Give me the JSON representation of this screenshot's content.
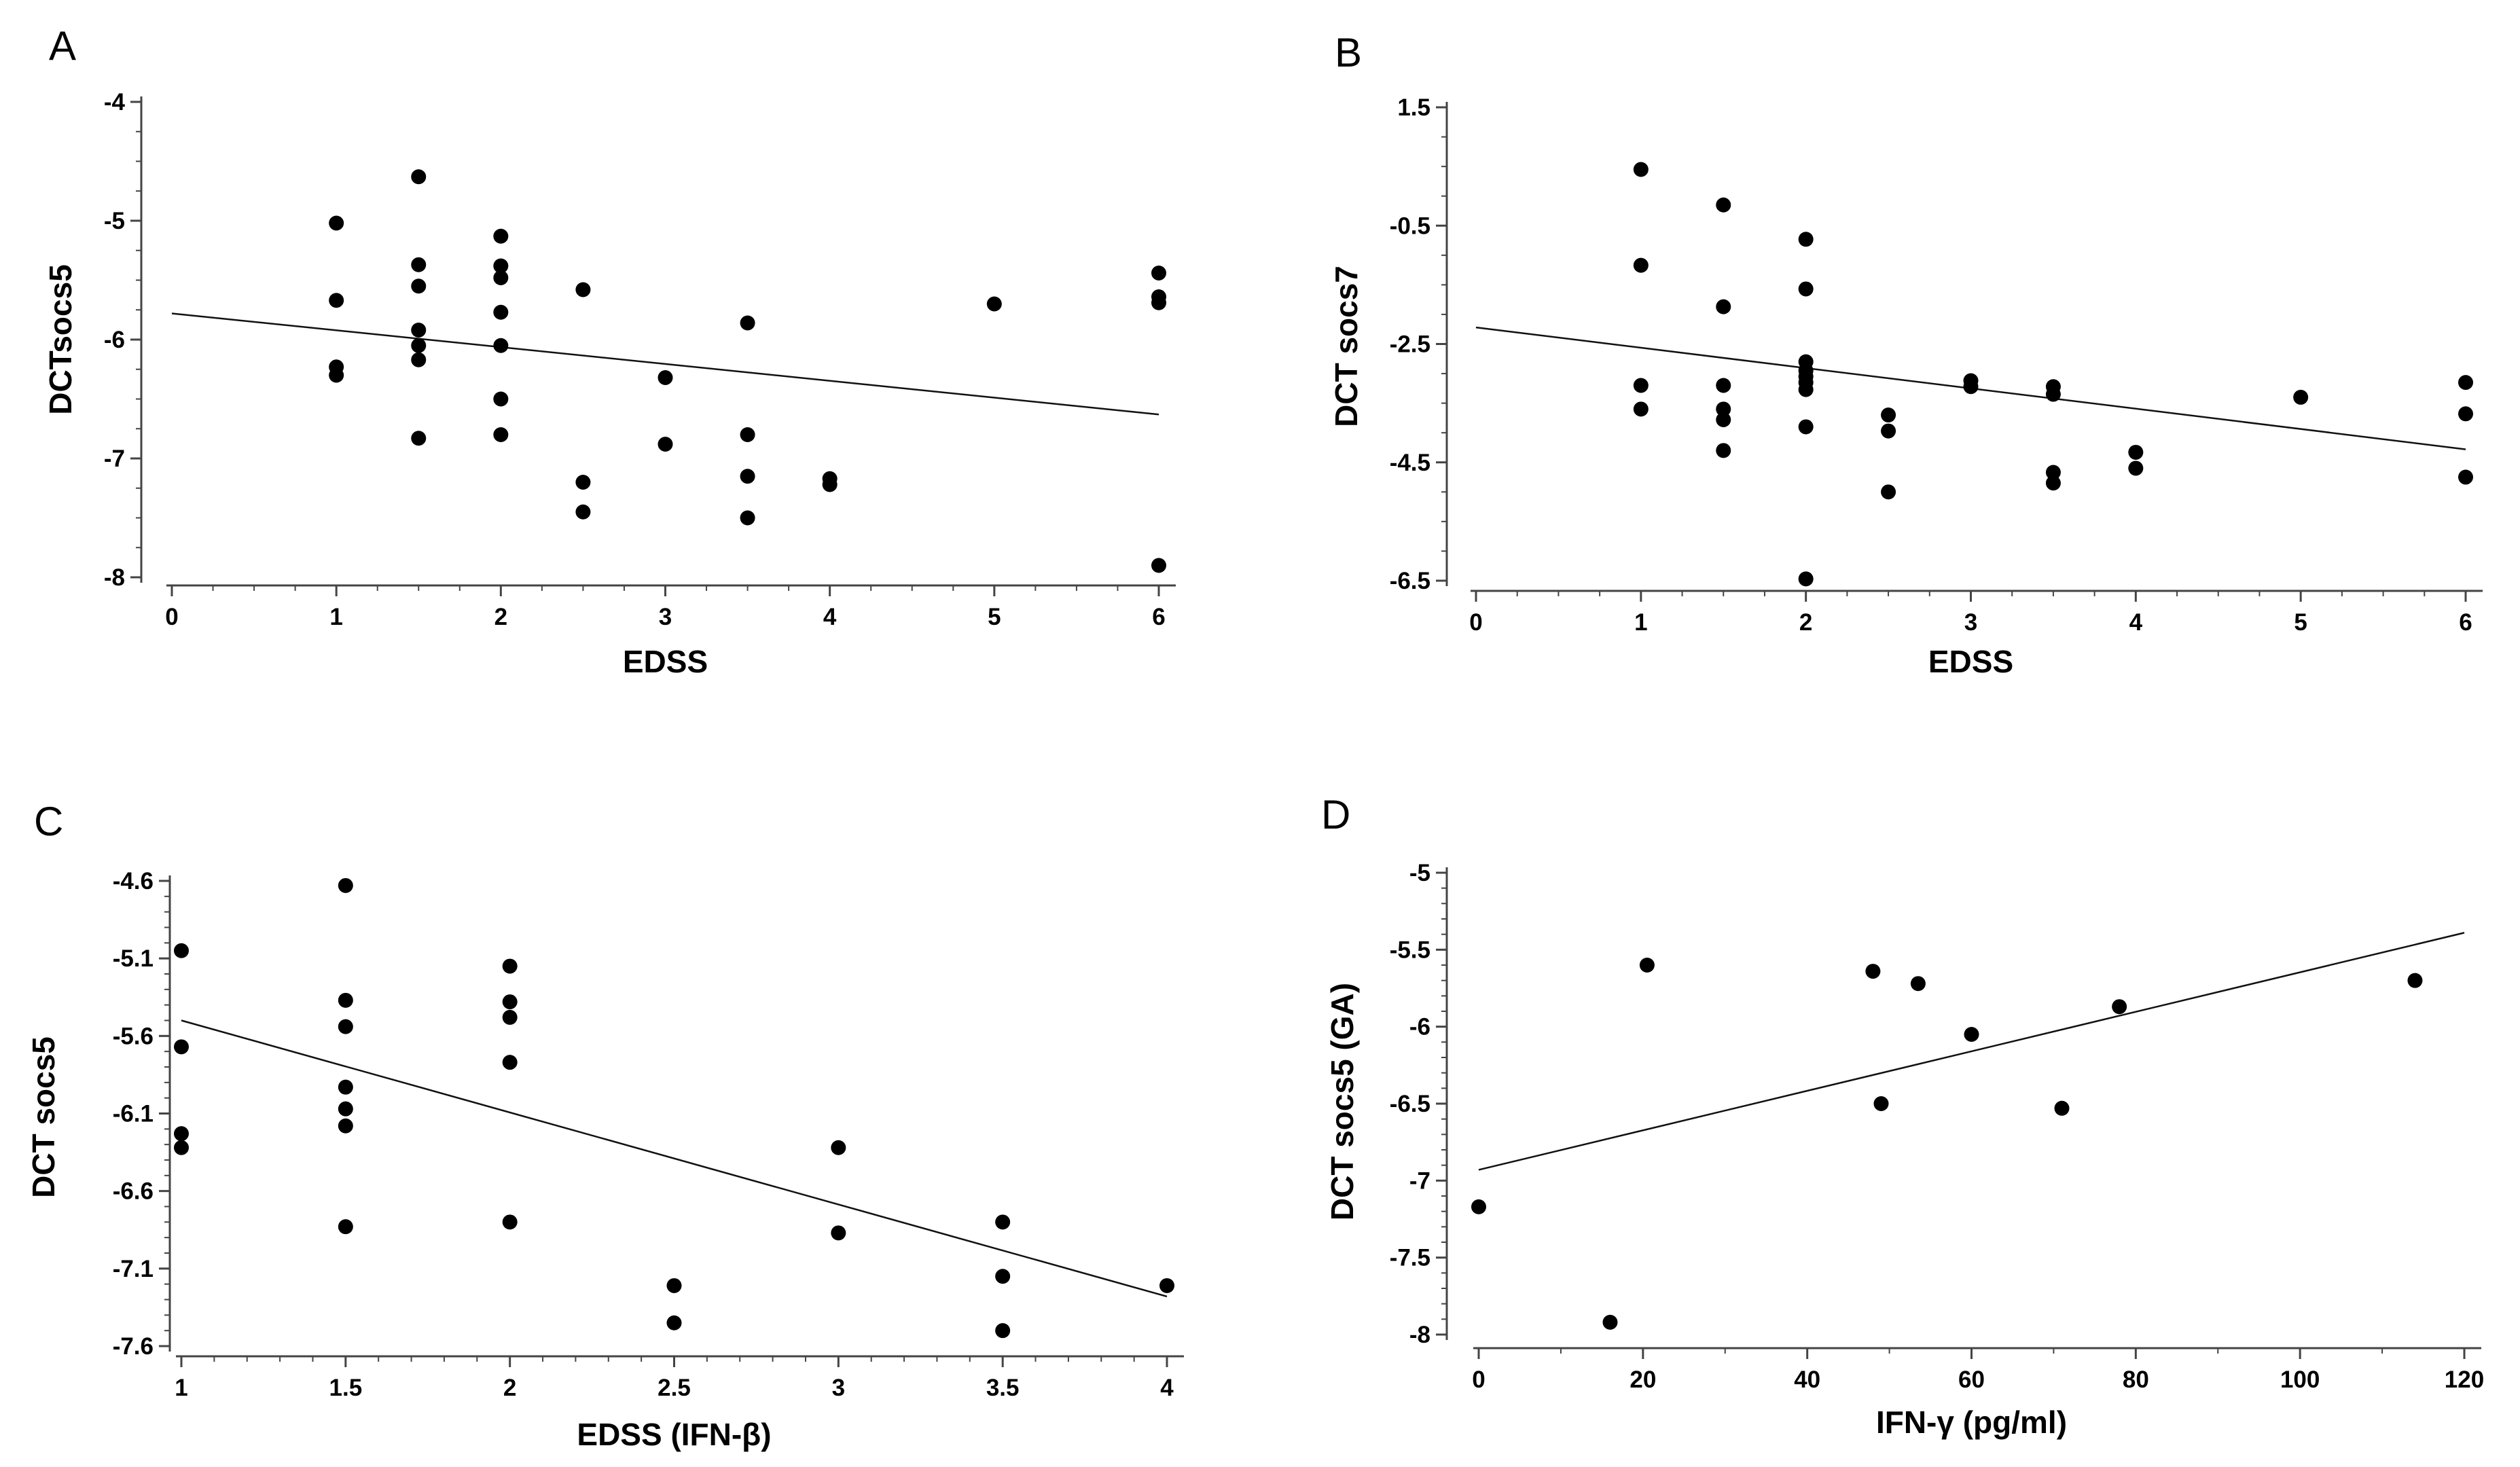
{
  "chart_data": [
    {
      "panel": "A",
      "type": "scatter",
      "xlabel": "EDSS",
      "ylabel": "DCTsocs5",
      "xlim": [
        0,
        6
      ],
      "ylim": [
        -8,
        -4
      ],
      "xticks": [
        0,
        1,
        2,
        3,
        4,
        5,
        6
      ],
      "yticks": [
        -8,
        -7,
        -6,
        -5,
        -4
      ],
      "x_minor_step": 0.25,
      "y_minor_step": 0.25,
      "points": [
        [
          1,
          -5.02
        ],
        [
          1,
          -5.67
        ],
        [
          1,
          -6.23
        ],
        [
          1,
          -6.3
        ],
        [
          1.5,
          -4.63
        ],
        [
          1.5,
          -5.37
        ],
        [
          1.5,
          -5.55
        ],
        [
          1.5,
          -5.92
        ],
        [
          1.5,
          -6.05
        ],
        [
          1.5,
          -6.17
        ],
        [
          1.5,
          -6.83
        ],
        [
          2,
          -5.13
        ],
        [
          2,
          -5.38
        ],
        [
          2,
          -5.48
        ],
        [
          2,
          -5.77
        ],
        [
          2,
          -6.05
        ],
        [
          2,
          -6.5
        ],
        [
          2,
          -6.8
        ],
        [
          2.5,
          -5.58
        ],
        [
          2.5,
          -7.2
        ],
        [
          2.5,
          -7.45
        ],
        [
          3,
          -6.32
        ],
        [
          3,
          -6.88
        ],
        [
          3.5,
          -5.86
        ],
        [
          3.5,
          -6.8
        ],
        [
          3.5,
          -7.15
        ],
        [
          3.5,
          -7.5
        ],
        [
          4,
          -7.17
        ],
        [
          4,
          -7.22
        ],
        [
          5,
          -5.7
        ],
        [
          6,
          -5.44
        ],
        [
          6,
          -5.64
        ],
        [
          6,
          -5.69
        ],
        [
          6,
          -7.9
        ]
      ],
      "fit_line": [
        [
          0,
          -5.78
        ],
        [
          6,
          -6.63
        ]
      ]
    },
    {
      "panel": "B",
      "type": "scatter",
      "xlabel": "EDSS",
      "ylabel": "DCT socs7",
      "xlim": [
        0,
        6
      ],
      "ylim": [
        -6.5,
        1.5
      ],
      "xticks": [
        0,
        1,
        2,
        3,
        4,
        5,
        6
      ],
      "yticks": [
        -6.5,
        -4.5,
        -2.5,
        -0.5,
        1.5
      ],
      "y_tick_labels": [
        "-6.5",
        "-4.5",
        "-2.5",
        "-0.5",
        "1.5"
      ],
      "x_minor_step": 0.25,
      "y_minor_step": 0.5,
      "points": [
        [
          1,
          0.45
        ],
        [
          1,
          -1.17
        ],
        [
          1,
          -3.2
        ],
        [
          1,
          -3.6
        ],
        [
          1.5,
          -0.15
        ],
        [
          1.5,
          -1.87
        ],
        [
          1.5,
          -3.2
        ],
        [
          1.5,
          -3.6
        ],
        [
          1.5,
          -3.78
        ],
        [
          1.5,
          -4.3
        ],
        [
          2,
          -0.73
        ],
        [
          2,
          -1.57
        ],
        [
          2,
          -2.8
        ],
        [
          2,
          -2.95
        ],
        [
          2,
          -3.05
        ],
        [
          2,
          -3.15
        ],
        [
          2,
          -3.27
        ],
        [
          2,
          -3.9
        ],
        [
          2,
          -6.47
        ],
        [
          2.5,
          -3.7
        ],
        [
          2.5,
          -3.97
        ],
        [
          2.5,
          -5.0
        ],
        [
          3,
          -3.12
        ],
        [
          3,
          -3.22
        ],
        [
          3.5,
          -3.22
        ],
        [
          3.5,
          -3.35
        ],
        [
          3.5,
          -4.67
        ],
        [
          3.5,
          -4.85
        ],
        [
          4,
          -4.33
        ],
        [
          4,
          -4.6
        ],
        [
          5,
          -3.4
        ],
        [
          6,
          -3.15
        ],
        [
          6,
          -3.68
        ],
        [
          6,
          -4.75
        ]
      ],
      "fit_line": [
        [
          0,
          -2.22
        ],
        [
          6,
          -4.28
        ]
      ]
    },
    {
      "panel": "C",
      "type": "scatter",
      "xlabel": "EDSS (IFN-β)",
      "ylabel": "DCT socs5",
      "xlim": [
        1,
        4
      ],
      "ylim": [
        -7.6,
        -4.6
      ],
      "xticks": [
        1,
        1.5,
        2,
        2.5,
        3,
        3.5,
        4
      ],
      "yticks": [
        -7.6,
        -7.1,
        -6.6,
        -6.1,
        -5.6,
        -5.1,
        -4.6
      ],
      "y_tick_labels": [
        "-7.6",
        "-7.1",
        "-6.6",
        "-6.1",
        "-5.6",
        "-5.1",
        "-4.6"
      ],
      "x_minor_step": 0.1,
      "y_minor_step": 0.1,
      "points": [
        [
          1,
          -5.05
        ],
        [
          1,
          -5.67
        ],
        [
          1,
          -6.23
        ],
        [
          1,
          -6.32
        ],
        [
          1.5,
          -4.63
        ],
        [
          1.5,
          -5.37
        ],
        [
          1.5,
          -5.54
        ],
        [
          1.5,
          -5.93
        ],
        [
          1.5,
          -6.07
        ],
        [
          1.5,
          -6.18
        ],
        [
          1.5,
          -6.83
        ],
        [
          2,
          -5.15
        ],
        [
          2,
          -5.38
        ],
        [
          2,
          -5.48
        ],
        [
          2,
          -5.77
        ],
        [
          2,
          -6.8
        ],
        [
          2.5,
          -7.21
        ],
        [
          2.5,
          -7.45
        ],
        [
          3,
          -6.32
        ],
        [
          3,
          -6.87
        ],
        [
          3.5,
          -6.8
        ],
        [
          3.5,
          -7.15
        ],
        [
          3.5,
          -7.5
        ],
        [
          4,
          -7.21
        ]
      ],
      "fit_line": [
        [
          1,
          -5.5
        ],
        [
          4,
          -7.28
        ]
      ]
    },
    {
      "panel": "D",
      "type": "scatter",
      "xlabel": "IFN-γ (pg/ml)",
      "ylabel": "DCT socs5 (GA)",
      "xlim": [
        0,
        120
      ],
      "ylim": [
        -8,
        -5
      ],
      "xticks": [
        0,
        20,
        40,
        60,
        80,
        100,
        120
      ],
      "yticks": [
        -8,
        -7.5,
        -7,
        -6.5,
        -6,
        -5.5,
        -5
      ],
      "x_minor_step": 10,
      "y_minor_step": 0.1,
      "points": [
        [
          0,
          -7.17
        ],
        [
          16,
          -7.92
        ],
        [
          20.5,
          -5.6
        ],
        [
          48,
          -5.64
        ],
        [
          49,
          -6.5
        ],
        [
          53.5,
          -5.72
        ],
        [
          60,
          -6.05
        ],
        [
          71,
          -6.53
        ],
        [
          78,
          -5.87
        ],
        [
          114,
          -5.7
        ]
      ],
      "fit_line": [
        [
          0,
          -6.93
        ],
        [
          120,
          -5.39
        ]
      ]
    }
  ]
}
